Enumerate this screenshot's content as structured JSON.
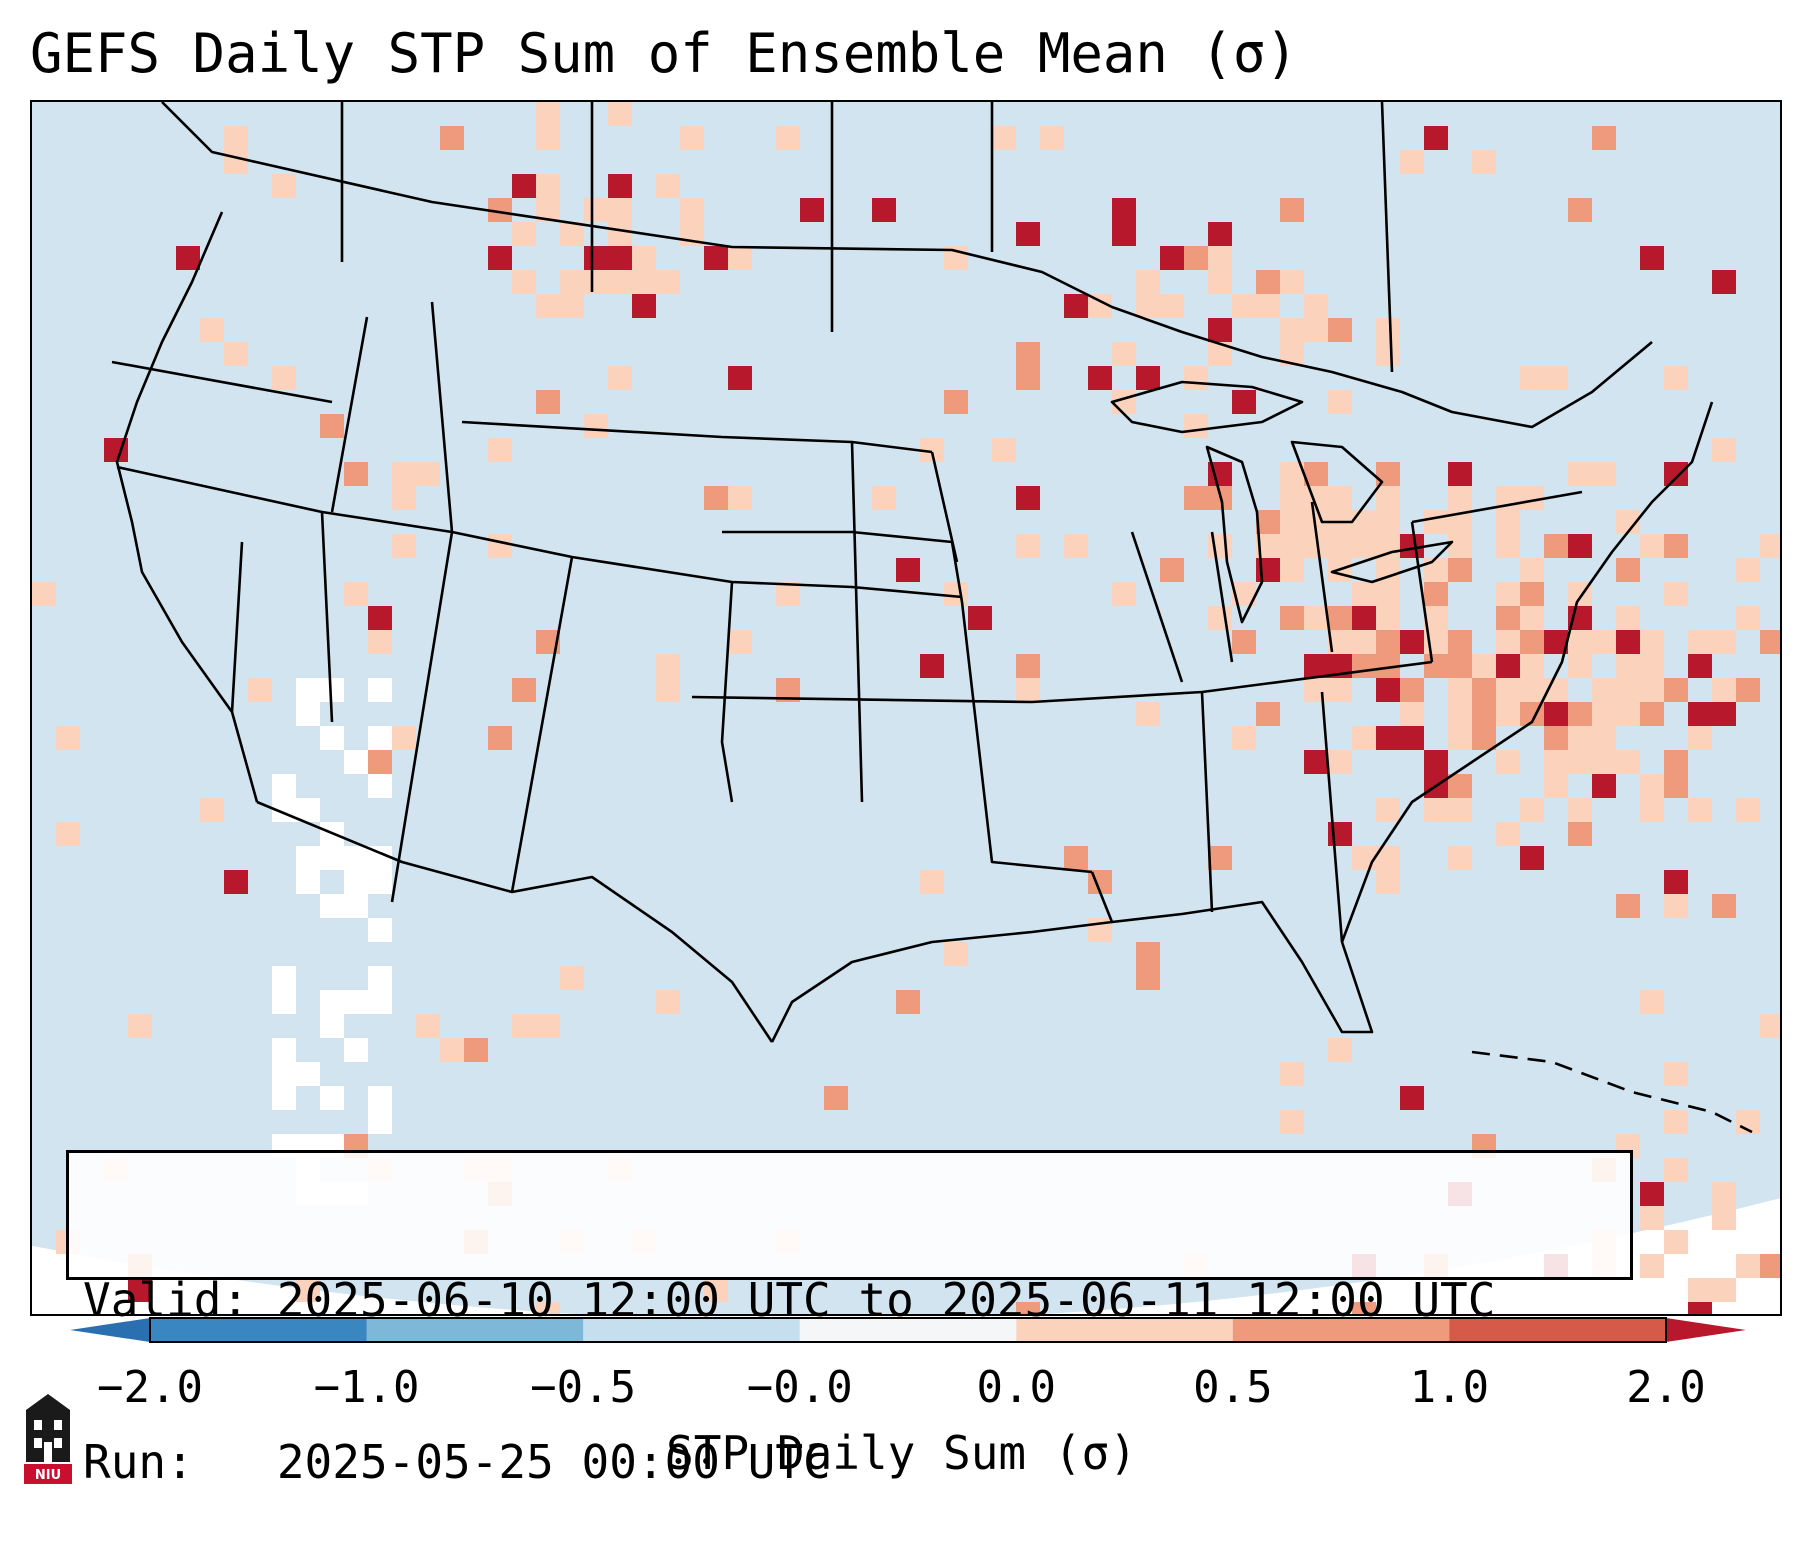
{
  "title": "GEFS Daily STP Sum of Ensemble Mean (σ)",
  "info_box": {
    "valid_line": "Valid: 2025-06-10 12:00 UTC to 2025-06-11 12:00 UTC",
    "run_line": "Run:   2025-05-25 00:00 UTC"
  },
  "colorbar": {
    "label": "STP Daily Sum (σ)",
    "ticks": [
      "−2.0",
      "−1.0",
      "−0.5",
      "−0.0",
      "0.0",
      "0.5",
      "1.0",
      "2.0"
    ],
    "bin_colors": [
      "#3a86c1",
      "#7eb8d8",
      "#c6dfee",
      "#f5f6f8",
      "#fbd3bd",
      "#ef9a7c",
      "#d55a4a"
    ],
    "under_color": "#2a6fb0",
    "over_color": "#b8182c"
  },
  "map": {
    "background_color": "#d2e4ef",
    "outside_color": "#ffffff",
    "border_color": "#000000",
    "projection": "lambert conformal, CONUS"
  },
  "logo": {
    "text": "NIU",
    "icon": "university-building-icon",
    "color": "#c8102e"
  }
}
